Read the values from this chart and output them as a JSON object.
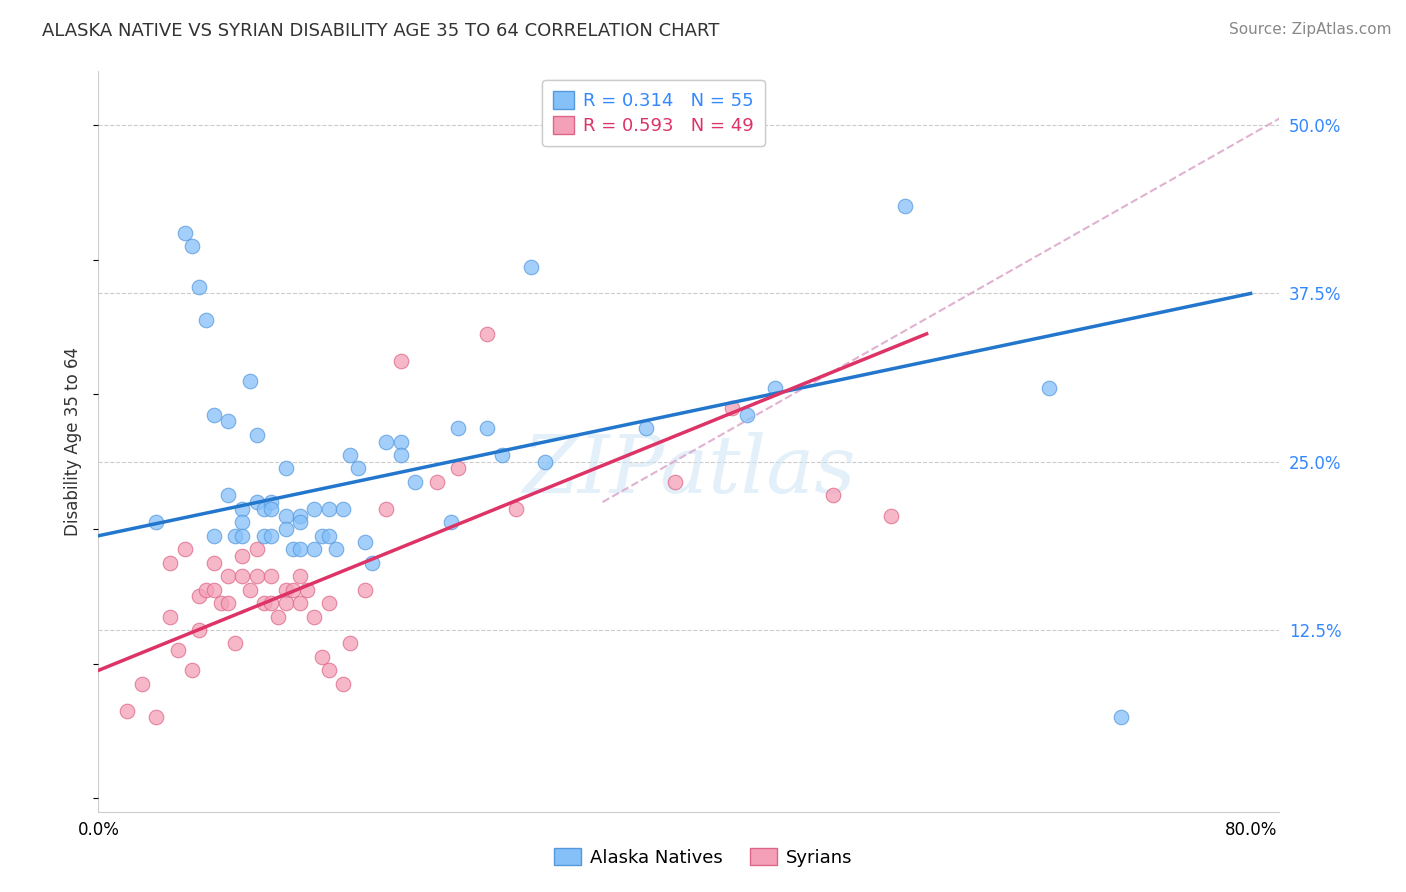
{
  "title": "ALASKA NATIVE VS SYRIAN DISABILITY AGE 35 TO 64 CORRELATION CHART",
  "source": "Source: ZipAtlas.com",
  "ylabel": "Disability Age 35 to 64",
  "ytick_positions": [
    0.0,
    0.125,
    0.25,
    0.375,
    0.5
  ],
  "ytick_labels": [
    "",
    "12.5%",
    "25.0%",
    "37.5%",
    "50.0%"
  ],
  "xtick_positions": [
    0.0,
    0.1,
    0.2,
    0.3,
    0.4,
    0.5,
    0.6,
    0.7,
    0.8
  ],
  "xtick_labels": [
    "0.0%",
    "",
    "",
    "",
    "",
    "",
    "",
    "",
    "80.0%"
  ],
  "xlim": [
    0.0,
    0.82
  ],
  "ylim": [
    -0.01,
    0.54
  ],
  "alaska_R": 0.314,
  "alaska_N": 55,
  "syrian_R": 0.593,
  "syrian_N": 49,
  "alaska_color": "#85c0f9",
  "syrian_color": "#f4a0b8",
  "alaska_edge_color": "#5599dd",
  "syrian_edge_color": "#dd6688",
  "alaska_line_color": "#2277cc",
  "syrian_line_color": "#dd3366",
  "dashed_line_color": "#ddaacc",
  "watermark_color": "#cce5f5",
  "background_color": "#ffffff",
  "grid_color": "#cccccc",
  "alaska_scatter_x": [
    0.04,
    0.06,
    0.065,
    0.07,
    0.075,
    0.08,
    0.08,
    0.09,
    0.09,
    0.095,
    0.1,
    0.1,
    0.1,
    0.105,
    0.11,
    0.11,
    0.115,
    0.115,
    0.12,
    0.12,
    0.12,
    0.13,
    0.13,
    0.13,
    0.135,
    0.14,
    0.14,
    0.14,
    0.15,
    0.15,
    0.155,
    0.16,
    0.16,
    0.165,
    0.17,
    0.175,
    0.18,
    0.185,
    0.19,
    0.2,
    0.21,
    0.21,
    0.22,
    0.245,
    0.25,
    0.27,
    0.28,
    0.3,
    0.31,
    0.38,
    0.45,
    0.47,
    0.56,
    0.66,
    0.71
  ],
  "alaska_scatter_y": [
    0.205,
    0.42,
    0.41,
    0.38,
    0.355,
    0.285,
    0.195,
    0.28,
    0.225,
    0.195,
    0.215,
    0.205,
    0.195,
    0.31,
    0.27,
    0.22,
    0.215,
    0.195,
    0.22,
    0.215,
    0.195,
    0.245,
    0.21,
    0.2,
    0.185,
    0.21,
    0.205,
    0.185,
    0.215,
    0.185,
    0.195,
    0.215,
    0.195,
    0.185,
    0.215,
    0.255,
    0.245,
    0.19,
    0.175,
    0.265,
    0.265,
    0.255,
    0.235,
    0.205,
    0.275,
    0.275,
    0.255,
    0.395,
    0.25,
    0.275,
    0.285,
    0.305,
    0.44,
    0.305,
    0.06
  ],
  "syrian_scatter_x": [
    0.02,
    0.03,
    0.04,
    0.05,
    0.05,
    0.055,
    0.06,
    0.065,
    0.07,
    0.07,
    0.075,
    0.08,
    0.08,
    0.085,
    0.09,
    0.09,
    0.095,
    0.1,
    0.1,
    0.105,
    0.11,
    0.11,
    0.115,
    0.12,
    0.12,
    0.125,
    0.13,
    0.13,
    0.135,
    0.14,
    0.14,
    0.145,
    0.15,
    0.155,
    0.16,
    0.16,
    0.17,
    0.175,
    0.185,
    0.2,
    0.21,
    0.235,
    0.25,
    0.27,
    0.29,
    0.4,
    0.44,
    0.51,
    0.55
  ],
  "syrian_scatter_y": [
    0.065,
    0.085,
    0.06,
    0.175,
    0.135,
    0.11,
    0.185,
    0.095,
    0.15,
    0.125,
    0.155,
    0.175,
    0.155,
    0.145,
    0.165,
    0.145,
    0.115,
    0.18,
    0.165,
    0.155,
    0.185,
    0.165,
    0.145,
    0.165,
    0.145,
    0.135,
    0.155,
    0.145,
    0.155,
    0.165,
    0.145,
    0.155,
    0.135,
    0.105,
    0.145,
    0.095,
    0.085,
    0.115,
    0.155,
    0.215,
    0.325,
    0.235,
    0.245,
    0.345,
    0.215,
    0.235,
    0.29,
    0.225,
    0.21
  ],
  "alaska_line_x": [
    0.0,
    0.8
  ],
  "alaska_line_y": [
    0.195,
    0.375
  ],
  "syrian_line_x": [
    0.0,
    0.575
  ],
  "syrian_line_y": [
    0.095,
    0.345
  ],
  "dashed_line_x": [
    0.35,
    0.82
  ],
  "dashed_line_y": [
    0.22,
    0.505
  ],
  "title_fontsize": 13,
  "tick_fontsize": 12,
  "axis_label_fontsize": 12,
  "legend_fontsize": 13,
  "source_fontsize": 11
}
